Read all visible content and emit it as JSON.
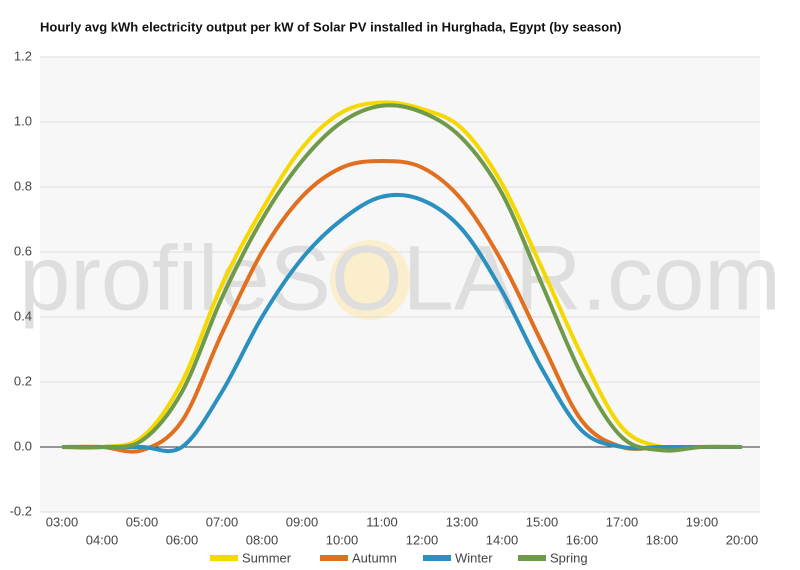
{
  "chart_data": {
    "type": "line",
    "title": "Hourly avg kWh electricity output per kW of Solar PV installed in Hurghada, Egypt (by season)",
    "watermark": "profileSOLAR.com",
    "categories": [
      "03:00",
      "04:00",
      "05:00",
      "06:00",
      "07:00",
      "08:00",
      "09:00",
      "10:00",
      "11:00",
      "12:00",
      "13:00",
      "14:00",
      "15:00",
      "16:00",
      "17:00",
      "18:00",
      "19:00",
      "20:00"
    ],
    "series": [
      {
        "name": "Summer",
        "color": "#f5d800",
        "values": [
          0,
          0,
          0.03,
          0.2,
          0.5,
          0.73,
          0.92,
          1.03,
          1.06,
          1.04,
          0.98,
          0.81,
          0.55,
          0.28,
          0.06,
          0,
          0,
          0
        ]
      },
      {
        "name": "Autumn",
        "color": "#e07020",
        "values": [
          0,
          0,
          -0.01,
          0.08,
          0.35,
          0.6,
          0.77,
          0.86,
          0.88,
          0.86,
          0.76,
          0.57,
          0.32,
          0.08,
          0,
          0,
          0,
          0
        ]
      },
      {
        "name": "Winter",
        "color": "#2a90c0",
        "values": [
          0,
          0,
          0,
          0,
          0.17,
          0.4,
          0.58,
          0.7,
          0.77,
          0.76,
          0.67,
          0.48,
          0.24,
          0.05,
          0,
          0,
          0,
          0
        ]
      },
      {
        "name": "Spring",
        "color": "#6f9a4a",
        "values": [
          0,
          0,
          0.02,
          0.17,
          0.46,
          0.7,
          0.88,
          1.0,
          1.05,
          1.03,
          0.95,
          0.78,
          0.5,
          0.22,
          0.03,
          -0.01,
          0,
          0
        ]
      }
    ],
    "ylim": [
      -0.2,
      1.2
    ],
    "yticks": [
      -0.2,
      {
        "value": 0,
        "label": "0.0"
      },
      0.2,
      0.4,
      0.6,
      0.8,
      {
        "value": 1,
        "label": "1.0"
      },
      1.2
    ],
    "grid": true
  }
}
